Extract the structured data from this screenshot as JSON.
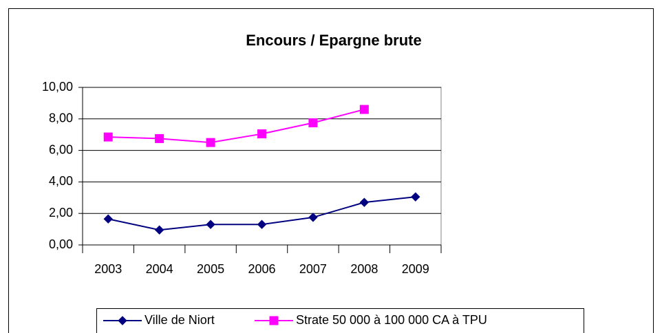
{
  "chart_data": {
    "type": "line",
    "title": "Encours / Epargne brute",
    "categories": [
      "2003",
      "2004",
      "2005",
      "2006",
      "2007",
      "2008",
      "2009"
    ],
    "series": [
      {
        "name": "Ville de Niort",
        "color": "#000080",
        "marker": "diamond",
        "values": [
          1.65,
          0.95,
          1.3,
          1.3,
          1.75,
          2.7,
          3.05
        ]
      },
      {
        "name": "Strate 50 000 à 100 000 CA à TPU",
        "color": "#ff00ff",
        "marker": "square",
        "values": [
          6.85,
          6.75,
          6.5,
          7.05,
          7.75,
          8.6,
          null
        ]
      }
    ],
    "ylim": [
      0,
      10
    ],
    "yticks": [
      {
        "value": 0,
        "label": "0,00"
      },
      {
        "value": 2,
        "label": "2,00"
      },
      {
        "value": 4,
        "label": "4,00"
      },
      {
        "value": 6,
        "label": "6,00"
      },
      {
        "value": 8,
        "label": "8,00"
      },
      {
        "value": 10,
        "label": "10,00"
      }
    ],
    "grid": true,
    "legend": "bottom"
  }
}
